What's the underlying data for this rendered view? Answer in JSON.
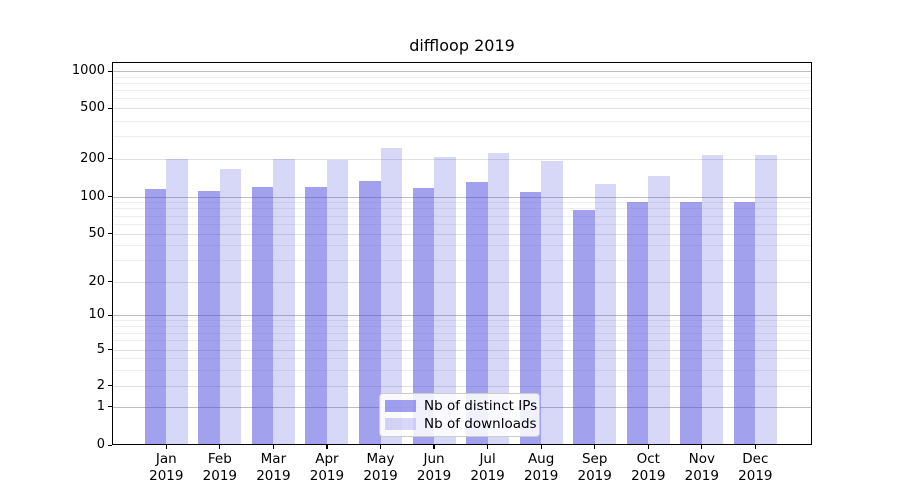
{
  "chart": {
    "title": "diffloop 2019"
  },
  "chart_data": {
    "type": "bar",
    "title": "diffloop 2019",
    "categories": [
      "Jan",
      "Feb",
      "Mar",
      "Apr",
      "May",
      "Jun",
      "Jul",
      "Aug",
      "Sep",
      "Oct",
      "Nov",
      "Dec"
    ],
    "x_tick_second_line": "2019",
    "series": [
      {
        "name": "Nb of distinct IPs",
        "color": "rgba(68,68,221,0.50)",
        "values": [
          115,
          110,
          120,
          118,
          133,
          116,
          130,
          108,
          78,
          90,
          91,
          91
        ]
      },
      {
        "name": "Nb of downloads",
        "color": "rgba(68,68,221,0.21)",
        "values": [
          200,
          165,
          197,
          196,
          243,
          207,
          222,
          190,
          126,
          146,
          214,
          215
        ]
      }
    ],
    "yscale": "symlog",
    "yticks": [
      0,
      1,
      2,
      5,
      10,
      20,
      50,
      100,
      200,
      500,
      1000
    ],
    "ylim": [
      0,
      1200
    ],
    "grid": true,
    "legend_position": "lower center",
    "colors": {
      "decade_gridline": "#bdbdbd",
      "major_gridline": "#e0e0e0",
      "minor_gridline": "#eeeeee"
    }
  }
}
